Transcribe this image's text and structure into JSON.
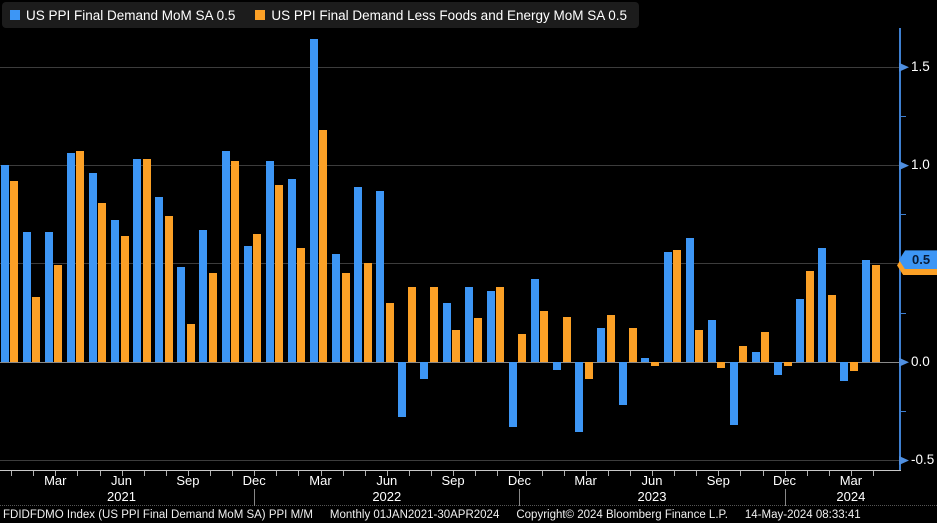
{
  "legend": {
    "items": [
      {
        "label": "US PPI Final Demand MoM SA 0.5",
        "color": "#3D96F5"
      },
      {
        "label": "US PPI Final Demand Less Foods and Energy MoM SA 0.5",
        "color": "#FBA026"
      }
    ]
  },
  "chart_data": {
    "type": "bar",
    "categories": [
      "Jan 2021",
      "Feb 2021",
      "Mar 2021",
      "Apr 2021",
      "May 2021",
      "Jun 2021",
      "Jul 2021",
      "Aug 2021",
      "Sep 2021",
      "Oct 2021",
      "Nov 2021",
      "Dec 2021",
      "Jan 2022",
      "Feb 2022",
      "Mar 2022",
      "Apr 2022",
      "May 2022",
      "Jun 2022",
      "Jul 2022",
      "Aug 2022",
      "Sep 2022",
      "Oct 2022",
      "Nov 2022",
      "Dec 2022",
      "Jan 2023",
      "Feb 2023",
      "Mar 2023",
      "Apr 2023",
      "May 2023",
      "Jun 2023",
      "Jul 2023",
      "Aug 2023",
      "Sep 2023",
      "Oct 2023",
      "Nov 2023",
      "Dec 2023",
      "Jan 2024",
      "Feb 2024",
      "Mar 2024",
      "Apr 2024"
    ],
    "series": [
      {
        "name": "US PPI Final Demand MoM SA",
        "color": "#3D96F5",
        "values": [
          1.0,
          0.66,
          0.66,
          1.06,
          0.96,
          0.72,
          1.03,
          0.84,
          0.48,
          0.67,
          1.07,
          0.59,
          1.02,
          0.93,
          1.64,
          0.55,
          0.89,
          0.87,
          -0.28,
          -0.09,
          0.3,
          0.38,
          0.36,
          -0.33,
          0.42,
          -0.04,
          -0.36,
          0.17,
          -0.22,
          0.02,
          0.56,
          0.63,
          0.21,
          -0.32,
          0.05,
          -0.07,
          0.32,
          0.58,
          -0.1,
          0.52
        ]
      },
      {
        "name": "US PPI Final Demand Less Foods and Energy MoM SA",
        "color": "#FBA026",
        "values": [
          0.92,
          0.33,
          0.49,
          1.07,
          0.81,
          0.64,
          1.03,
          0.74,
          0.19,
          0.45,
          1.02,
          0.65,
          0.9,
          0.58,
          1.18,
          0.45,
          0.5,
          0.3,
          0.38,
          0.38,
          0.16,
          0.22,
          0.38,
          0.14,
          0.26,
          0.23,
          -0.09,
          0.24,
          0.17,
          -0.02,
          0.57,
          0.16,
          -0.03,
          0.08,
          0.15,
          -0.02,
          0.46,
          0.34,
          -0.05,
          0.49
        ]
      }
    ],
    "ylim": [
      -0.55,
      1.72
    ],
    "yticks_major": [
      {
        "value": 1.5,
        "label": "1.5"
      },
      {
        "value": 1.0,
        "label": "1.0"
      },
      {
        "value": 0.5,
        "label": "0.5"
      },
      {
        "value": 0.0,
        "label": "0.0"
      },
      {
        "value": -0.5,
        "label": "-0.5"
      }
    ],
    "yticks_minor": [
      1.25,
      0.75,
      0.25,
      -0.25
    ],
    "xticks": [
      {
        "i": 2,
        "label": "Mar"
      },
      {
        "i": 5,
        "label": "Jun",
        "year": "2021"
      },
      {
        "i": 8,
        "label": "Sep"
      },
      {
        "i": 11,
        "label": "Dec",
        "separator": true
      },
      {
        "i": 14,
        "label": "Mar"
      },
      {
        "i": 17,
        "label": "Jun",
        "year": "2022"
      },
      {
        "i": 20,
        "label": "Sep"
      },
      {
        "i": 23,
        "label": "Dec",
        "separator": true
      },
      {
        "i": 26,
        "label": "Mar"
      },
      {
        "i": 29,
        "label": "Jun",
        "year": "2023"
      },
      {
        "i": 32,
        "label": "Sep"
      },
      {
        "i": 35,
        "label": "Dec",
        "separator": true
      },
      {
        "i": 38,
        "label": "Mar",
        "year": "2024"
      }
    ],
    "grid": true,
    "legend_position": "top-left",
    "last_value_badges": [
      {
        "series": "US PPI Final Demand MoM SA",
        "label": "0.5",
        "value": 0.5,
        "color": "#3D96F5",
        "text_color": "#091c38"
      },
      {
        "series": "US PPI Final Demand Less Foods and Energy MoM SA",
        "label": "0.5",
        "value": 0.48,
        "color": "#FBA026",
        "text_color": "#3a2400"
      }
    ]
  },
  "footer": {
    "segments": [
      "FDIDFDMO Index (US PPI Final Demand MoM SA) PPI M/M",
      "Monthly 01JAN2021-30APR2024",
      "Copyright© 2024 Bloomberg Finance L.P.",
      "14-May-2024 08:33:41"
    ]
  }
}
